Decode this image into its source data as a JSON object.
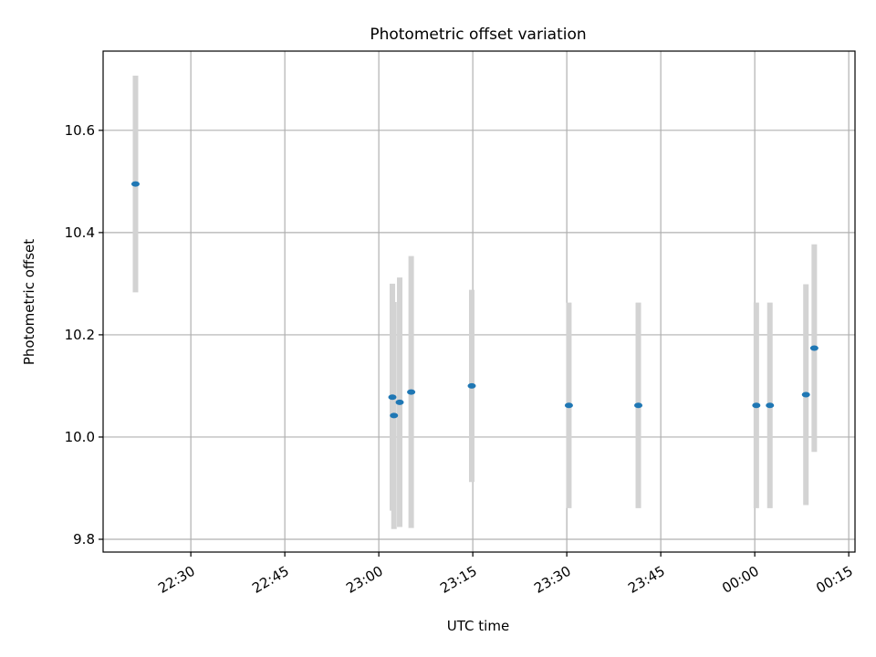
{
  "chart_data": {
    "type": "scatter",
    "title": "Photometric offset variation",
    "xlabel": "UTC time",
    "ylabel": "Photometric offset",
    "x_type": "time",
    "xlim": [
      "22:16",
      "00:16"
    ],
    "ylim": [
      9.775,
      10.755
    ],
    "x_ticks": [
      "22:30",
      "22:45",
      "23:00",
      "23:15",
      "23:30",
      "23:45",
      "00:00",
      "00:15"
    ],
    "y_ticks": [
      9.8,
      10.0,
      10.2,
      10.4,
      10.6
    ],
    "grid": true,
    "colors": {
      "point": "#1f77b4",
      "errorbar": "#d3d3d3",
      "grid": "#b0b0b0"
    },
    "points": [
      {
        "t": "22:21:10",
        "y": 10.495,
        "err": 0.212
      },
      {
        "t": "23:02:10",
        "y": 10.078,
        "err": 0.222
      },
      {
        "t": "23:02:25",
        "y": 10.042,
        "err": 0.222
      },
      {
        "t": "23:03:20",
        "y": 10.068,
        "err": 0.244
      },
      {
        "t": "23:05:10",
        "y": 10.088,
        "err": 0.266
      },
      {
        "t": "23:14:50",
        "y": 10.1,
        "err": 0.188
      },
      {
        "t": "23:30:20",
        "y": 10.062,
        "err": 0.201
      },
      {
        "t": "23:41:25",
        "y": 10.062,
        "err": 0.201
      },
      {
        "t": "00:00:15",
        "y": 10.062,
        "err": 0.201
      },
      {
        "t": "00:02:25",
        "y": 10.062,
        "err": 0.201
      },
      {
        "t": "00:08:10",
        "y": 10.083,
        "err": 0.216
      },
      {
        "t": "00:09:30",
        "y": 10.174,
        "err": 0.203
      }
    ]
  }
}
